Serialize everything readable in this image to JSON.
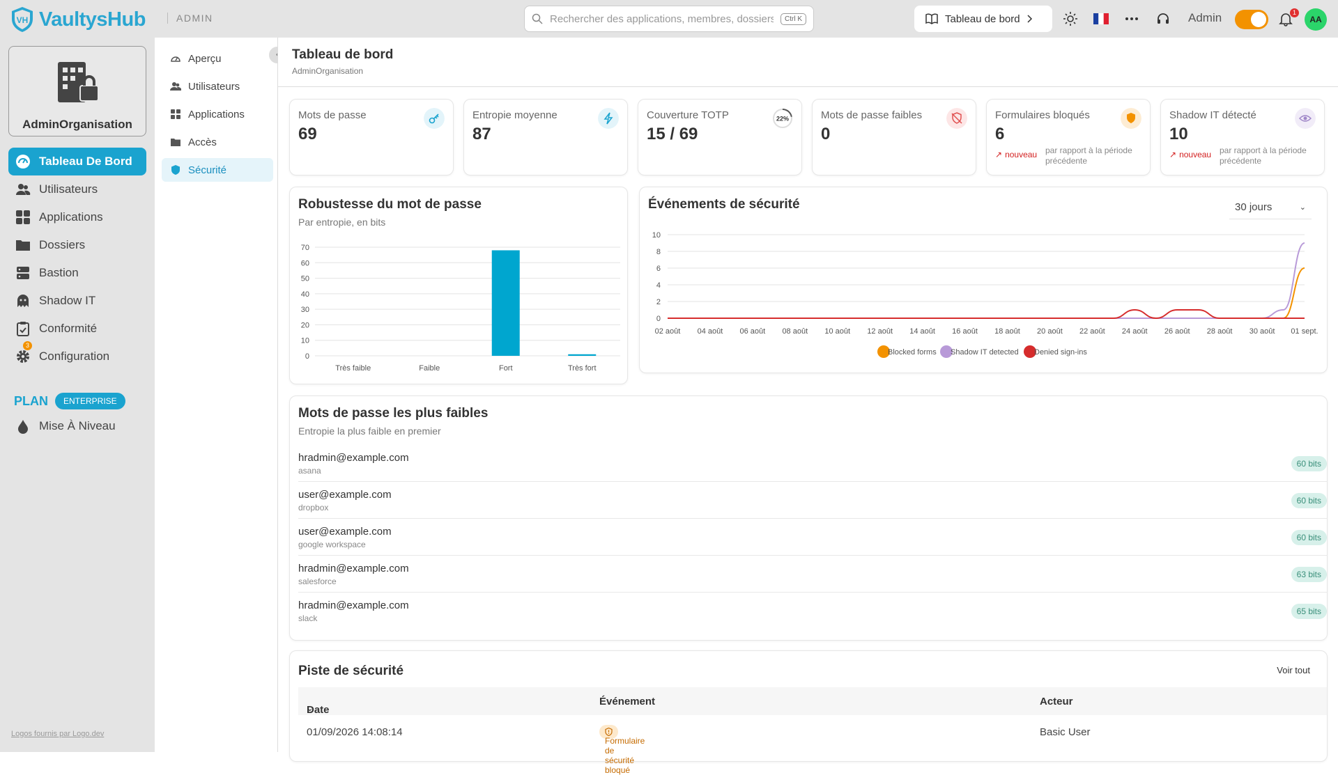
{
  "topbar": {
    "brand": "VaultysHub",
    "logo_text": "VH",
    "area": "ADMIN",
    "search_placeholder": "Rechercher des applications, membres, dossiers...",
    "shortcut": "Ctrl K",
    "breadcrumb_button": "Tableau de bord",
    "user_label": "Admin",
    "notifications_count": "1",
    "avatar_initials": "AA",
    "accent": "#1aa3cf",
    "toggle_color": "#f39200"
  },
  "sidebar": {
    "org_name": "AdminOrganisation",
    "items": [
      {
        "label": "Tableau De Bord",
        "icon": "dashboard-icon"
      },
      {
        "label": "Utilisateurs",
        "icon": "users-icon"
      },
      {
        "label": "Applications",
        "icon": "apps-icon"
      },
      {
        "label": "Dossiers",
        "icon": "folder-icon"
      },
      {
        "label": "Bastion",
        "icon": "server-icon"
      },
      {
        "label": "Shadow IT",
        "icon": "ghost-icon"
      },
      {
        "label": "Conformité",
        "icon": "clipboard-icon"
      },
      {
        "label": "Configuration",
        "icon": "gear-icon"
      }
    ],
    "shadow_badge": "3",
    "plan_label": "PLAN",
    "plan_tier": "ENTERPRISE",
    "upgrade_label": "Mise À Niveau",
    "credits": "Logos fournis par Logo.dev"
  },
  "subnav": {
    "items": [
      {
        "label": "Aperçu"
      },
      {
        "label": "Utilisateurs"
      },
      {
        "label": "Applications"
      },
      {
        "label": "Accès"
      },
      {
        "label": "Sécurité"
      }
    ]
  },
  "page": {
    "title": "Tableau de bord",
    "subtitle": "AdminOrganisation"
  },
  "kpis": [
    {
      "label": "Mots de passe",
      "value": "69",
      "icon": "key-icon",
      "color": "#1aa3cf"
    },
    {
      "label": "Entropie moyenne",
      "value": "87",
      "icon": "bolt-icon",
      "color": "#1aa3cf"
    },
    {
      "label": "Couverture TOTP",
      "value": "15 / 69",
      "icon": "progress-ring-icon",
      "ring": "22%",
      "ring_fraction": 0.22
    },
    {
      "label": "Mots de passe faibles",
      "value": "0",
      "icon": "shield-off-icon",
      "color": "#e05050"
    },
    {
      "label": "Formulaires bloqués",
      "value": "6",
      "icon": "shield-icon",
      "color": "#f39200",
      "trend": "nouveau",
      "compare": "par rapport à la période précédente"
    },
    {
      "label": "Shadow IT détecté",
      "value": "10",
      "icon": "eye-icon",
      "color": "#a087c8",
      "trend": "nouveau",
      "compare": "par rapport à la période précédente"
    }
  ],
  "strength_chart": {
    "title": "Robustesse du mot de passe",
    "subtitle": "Par entropie, en bits"
  },
  "events_chart": {
    "title": "Événements de sécurité",
    "range": "30 jours"
  },
  "chart_data": [
    {
      "type": "bar",
      "title": "Robustesse du mot de passe",
      "subtitle": "Par entropie, en bits",
      "categories": [
        "Très faible",
        "Faible",
        "Fort",
        "Très fort"
      ],
      "values": [
        0,
        0,
        68,
        1
      ],
      "ylim": [
        0,
        70
      ],
      "yticks": [
        0,
        10,
        20,
        30,
        40,
        50,
        60,
        70
      ],
      "color": "#00a6cf",
      "grid": true
    },
    {
      "type": "line",
      "title": "Événements de sécurité",
      "x": [
        "02 août",
        "03 août",
        "04 août",
        "05 août",
        "06 août",
        "07 août",
        "08 août",
        "09 août",
        "10 août",
        "11 août",
        "12 août",
        "13 août",
        "14 août",
        "15 août",
        "16 août",
        "17 août",
        "18 août",
        "19 août",
        "20 août",
        "21 août",
        "22 août",
        "23 août",
        "24 août",
        "25 août",
        "26 août",
        "27 août",
        "28 août",
        "29 août",
        "30 août",
        "31 août",
        "01 sept."
      ],
      "xticks": [
        "02 août",
        "04 août",
        "06 août",
        "08 août",
        "10 août",
        "12 août",
        "14 août",
        "16 août",
        "18 août",
        "20 août",
        "22 août",
        "24 août",
        "26 août",
        "28 août",
        "30 août",
        "01 sept."
      ],
      "ylim": [
        0,
        10
      ],
      "yticks": [
        0,
        2,
        4,
        6,
        8,
        10
      ],
      "series": [
        {
          "name": "Blocked forms",
          "color": "#f39200",
          "values": [
            0,
            0,
            0,
            0,
            0,
            0,
            0,
            0,
            0,
            0,
            0,
            0,
            0,
            0,
            0,
            0,
            0,
            0,
            0,
            0,
            0,
            0,
            0,
            0,
            0,
            0,
            0,
            0,
            0,
            0,
            6
          ]
        },
        {
          "name": "Shadow IT detected",
          "color": "#b89ad8",
          "values": [
            0,
            0,
            0,
            0,
            0,
            0,
            0,
            0,
            0,
            0,
            0,
            0,
            0,
            0,
            0,
            0,
            0,
            0,
            0,
            0,
            0,
            0,
            0,
            0,
            0,
            0,
            0,
            0,
            0,
            1,
            9
          ]
        },
        {
          "name": "Denied sign-ins",
          "color": "#d62c2c",
          "values": [
            0,
            0,
            0,
            0,
            0,
            0,
            0,
            0,
            0,
            0,
            0,
            0,
            0,
            0,
            0,
            0,
            0,
            0,
            0,
            0,
            0,
            0,
            1,
            0,
            1,
            1,
            0,
            0,
            0,
            0,
            0
          ]
        }
      ],
      "legend": "bottom",
      "grid": true
    }
  ],
  "weakest": {
    "title": "Mots de passe les plus faibles",
    "subtitle": "Entropie la plus faible en premier",
    "rows": [
      {
        "email": "hradmin@example.com",
        "app": "asana",
        "bits": "60 bits"
      },
      {
        "email": "user@example.com",
        "app": "dropbox",
        "bits": "60 bits"
      },
      {
        "email": "user@example.com",
        "app": "google workspace",
        "bits": "60 bits"
      },
      {
        "email": "hradmin@example.com",
        "app": "salesforce",
        "bits": "63 bits"
      },
      {
        "email": "hradmin@example.com",
        "app": "slack",
        "bits": "65 bits"
      }
    ]
  },
  "audit": {
    "title": "Piste de sécurité",
    "view_all": "Voir tout",
    "col_date": "Date",
    "col_event": "Événement",
    "col_actor": "Acteur",
    "row": {
      "date": "01/09/2026 14:08:14",
      "event": "Formulaire de sécurité bloqué",
      "actor": "Basic User"
    }
  }
}
